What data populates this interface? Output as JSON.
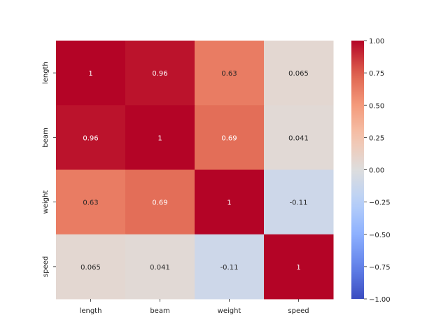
{
  "chart_data": {
    "type": "heatmap",
    "title": "",
    "xlabel": "",
    "ylabel": "",
    "x_categories": [
      "length",
      "beam",
      "weight",
      "speed"
    ],
    "y_categories": [
      "length",
      "beam",
      "weight",
      "speed"
    ],
    "values": [
      [
        1,
        0.96,
        0.63,
        0.065
      ],
      [
        0.96,
        1,
        0.69,
        0.041
      ],
      [
        0.63,
        0.69,
        1,
        -0.11
      ],
      [
        0.065,
        0.041,
        -0.11,
        1
      ]
    ],
    "annotations": [
      [
        "1",
        "0.96",
        "0.63",
        "0.065"
      ],
      [
        "0.96",
        "1",
        "0.69",
        "0.041"
      ],
      [
        "0.63",
        "0.69",
        "1",
        "-0.11"
      ],
      [
        "0.065",
        "0.041",
        "-0.11",
        "1"
      ]
    ],
    "colormap": "coolwarm",
    "colorbar": {
      "range": [
        -1.0,
        1.0
      ],
      "ticks": [
        1.0,
        0.75,
        0.5,
        0.25,
        0.0,
        -0.25,
        -0.5,
        -0.75,
        -1.0
      ],
      "tick_labels": [
        "1.00",
        "0.75",
        "0.50",
        "0.25",
        "0.00",
        "−0.25",
        "−0.50",
        "−0.75",
        "−1.00"
      ]
    }
  }
}
